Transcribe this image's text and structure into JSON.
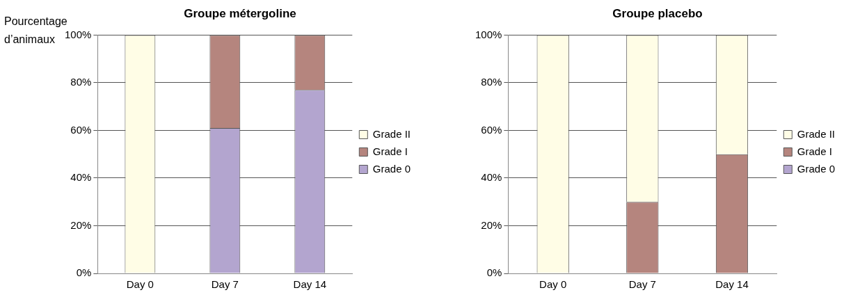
{
  "chart_data": [
    {
      "type": "bar",
      "title": "Groupe métergoline",
      "ylabel": "Pourcentage d’animaux",
      "categories": [
        "Day 0",
        "Day 7",
        "Day 14"
      ],
      "stacked": true,
      "legend": "right",
      "grid": "y",
      "ylim": [
        0,
        100
      ],
      "yticks": [
        {
          "value": 0,
          "label": "0%"
        },
        {
          "value": 20,
          "label": "20%"
        },
        {
          "value": 40,
          "label": "40%"
        },
        {
          "value": 60,
          "label": "60%"
        },
        {
          "value": 80,
          "label": "80%"
        },
        {
          "value": 100,
          "label": "100%"
        }
      ],
      "series": [
        {
          "name": "Grade 0",
          "color": "#b3a5cf",
          "values": [
            0,
            61,
            77
          ]
        },
        {
          "name": "Grade I",
          "color": "#b5857e",
          "values": [
            0,
            39,
            23
          ]
        },
        {
          "name": "Grade II",
          "color": "#fffde6",
          "values": [
            100,
            0,
            0
          ]
        }
      ]
    },
    {
      "type": "bar",
      "title": "Groupe placebo",
      "categories": [
        "Day 0",
        "Day 7",
        "Day 14"
      ],
      "stacked": true,
      "legend": "right",
      "grid": "y",
      "ylim": [
        0,
        100
      ],
      "yticks": [
        {
          "value": 0,
          "label": "0%"
        },
        {
          "value": 20,
          "label": "20%"
        },
        {
          "value": 40,
          "label": "40%"
        },
        {
          "value": 60,
          "label": "60%"
        },
        {
          "value": 80,
          "label": "80%"
        },
        {
          "value": 100,
          "label": "100%"
        }
      ],
      "series": [
        {
          "name": "Grade 0",
          "color": "#b3a5cf",
          "values": [
            0,
            0,
            0
          ]
        },
        {
          "name": "Grade I",
          "color": "#b5857e",
          "values": [
            0,
            30,
            50
          ]
        },
        {
          "name": "Grade II",
          "color": "#fffde6",
          "values": [
            100,
            70,
            50
          ]
        }
      ]
    }
  ]
}
